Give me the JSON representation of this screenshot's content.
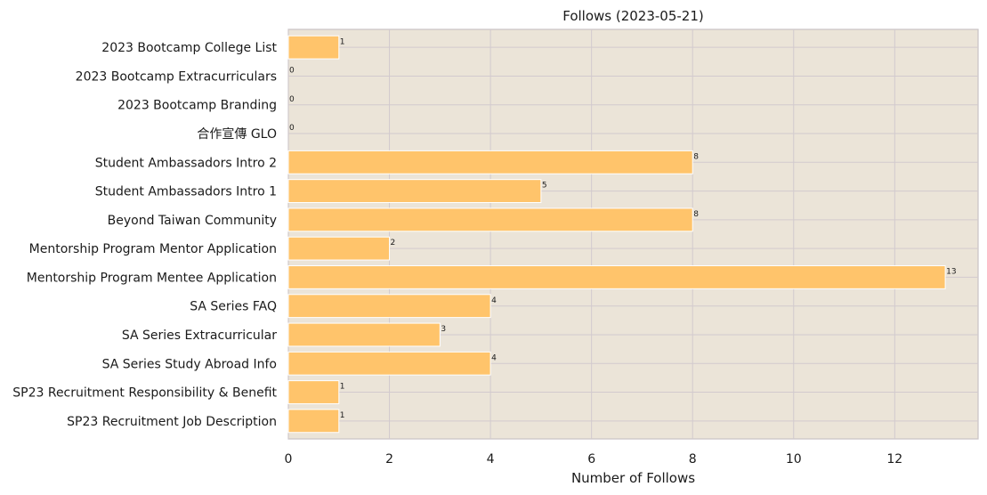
{
  "chart_data": {
    "type": "bar",
    "orientation": "horizontal",
    "title": "Follows (2023-05-21)",
    "xlabel": "Number of Follows",
    "ylabel": "",
    "categories": [
      "SP23 Recruitment Job Description",
      "SP23 Recruitment Responsibility & Benefit",
      "SA Series Study Abroad Info",
      "SA Series Extracurricular",
      "SA Series FAQ",
      "Mentorship Program Mentee Application",
      "Mentorship Program Mentor Application",
      "Beyond Taiwan Community",
      "Student Ambassadors Intro 1",
      "Student Ambassadors Intro 2",
      "合作宣傳 GLO",
      "2023 Bootcamp Branding",
      "2023 Bootcamp Extracurriculars",
      "2023 Bootcamp College List"
    ],
    "values": [
      1,
      1,
      4,
      3,
      4,
      13,
      2,
      8,
      5,
      8,
      0,
      0,
      0,
      1
    ],
    "value_labels": [
      "1",
      "1",
      "4",
      "3",
      "4",
      "13",
      "2",
      "8",
      "5",
      "8",
      "0",
      "0",
      "0",
      "1"
    ],
    "xlim": [
      0,
      13.65
    ],
    "xticks": [
      0,
      2,
      4,
      6,
      8,
      10,
      12
    ],
    "xtick_labels": [
      "0",
      "2",
      "4",
      "6",
      "8",
      "10",
      "12"
    ],
    "grid": true,
    "legend": "none",
    "colors": {
      "bar": "#ffc46b",
      "bar_edge": "#ffffff",
      "plot_background": "#ebe4d8",
      "grid": "#d2cace",
      "axis": "#c8c2c4"
    }
  }
}
